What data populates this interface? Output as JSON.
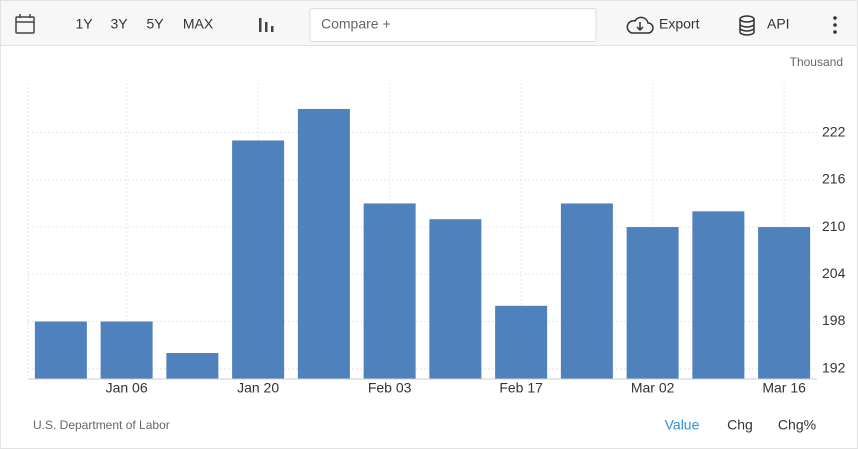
{
  "toolbar": {
    "ranges": [
      "1Y",
      "3Y",
      "5Y",
      "MAX"
    ],
    "compare": "Compare +",
    "export": "Export",
    "api": "API"
  },
  "chart_data": {
    "type": "bar",
    "unit": "Thousand",
    "source": "U.S. Department of Labor",
    "categories": [
      null,
      "Jan 06",
      null,
      "Jan 20",
      null,
      "Feb 03",
      null,
      "Feb 17",
      null,
      "Mar 02",
      null,
      "Mar 16"
    ],
    "values": [
      198,
      198,
      194,
      221,
      225,
      213,
      211,
      200,
      213,
      210,
      212,
      210
    ],
    "color": "#4f81bd",
    "ylim": [
      190.7,
      228.3
    ],
    "yticks": [
      192,
      198,
      204,
      210,
      216,
      222
    ],
    "grid": true,
    "views": [
      "Value",
      "Chg",
      "Chg%"
    ]
  }
}
